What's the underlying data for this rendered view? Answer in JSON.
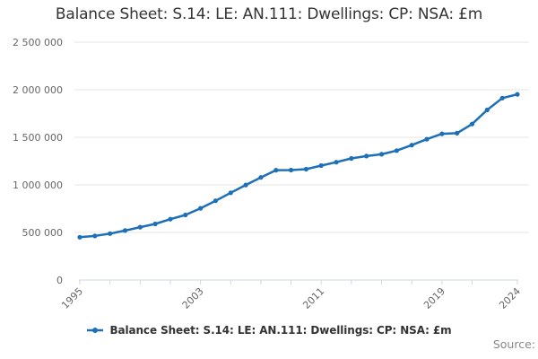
{
  "title": "Balance Sheet: S.14: LE: AN.111: Dwellings: CP: NSA: £m",
  "legend": {
    "label": "Balance Sheet: S.14: LE: AN.111: Dwellings: CP: NSA: £m"
  },
  "source": {
    "label": "Source:"
  },
  "colors": {
    "series": "#1d70b8",
    "grid": "#e6e6e6",
    "axis": "#ccd6eb",
    "tick_label": "#666666",
    "title_text": "#333333",
    "source_text": "#888888"
  },
  "chart_data": {
    "type": "line",
    "title": "Balance Sheet: S.14: LE: AN.111: Dwellings: CP: NSA: £m",
    "xlabel": "",
    "ylabel": "",
    "ylim": [
      0,
      2500000
    ],
    "grid": "horizontal",
    "legend_position": "bottom",
    "x": [
      1995,
      1996,
      1997,
      1998,
      1999,
      2000,
      2001,
      2002,
      2003,
      2004,
      2005,
      2006,
      2007,
      2008,
      2009,
      2010,
      2011,
      2012,
      2013,
      2014,
      2015,
      2016,
      2017,
      2018,
      2019,
      2020,
      2021,
      2022,
      2023,
      2024
    ],
    "series": [
      {
        "name": "Balance Sheet: S.14: LE: AN.111: Dwellings: CP: NSA: £m",
        "color": "#1d70b8",
        "values": [
          450000,
          463000,
          488000,
          520000,
          556000,
          590000,
          640000,
          684000,
          754000,
          833000,
          917000,
          999000,
          1078000,
          1155000,
          1156000,
          1165000,
          1203000,
          1239000,
          1278000,
          1303000,
          1322000,
          1360000,
          1418000,
          1480000,
          1537000,
          1543000,
          1640000,
          1788000,
          1912000,
          1952000
        ]
      }
    ],
    "y_ticks": [
      0,
      500000,
      1000000,
      1500000,
      2000000,
      2500000
    ],
    "y_tick_labels": [
      "0",
      "500 000",
      "1 000 000",
      "1 500 000",
      "2 000 000",
      "2 500 000"
    ],
    "x_axis": {
      "tick_years": [
        1995,
        1997,
        1999,
        2001,
        2003,
        2005,
        2007,
        2009,
        2011,
        2013,
        2015,
        2017,
        2019,
        2021,
        2024
      ],
      "label_years": [
        1995,
        2003,
        2011,
        2019,
        2024
      ]
    }
  }
}
